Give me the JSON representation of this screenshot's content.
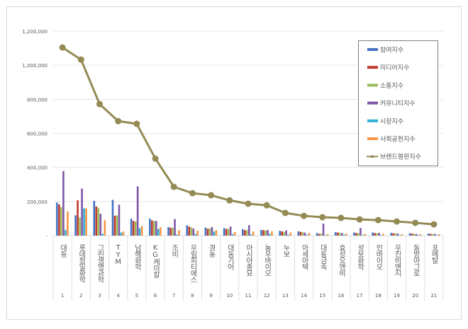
{
  "chart_data": {
    "type": "bar",
    "title": "",
    "xlabel": "",
    "ylabel": "",
    "ylim": [
      0,
      1200000
    ],
    "yticks": [
      "-",
      "200,000",
      "400,000",
      "600,000",
      "800,000",
      "1,000,000",
      "1,200,000"
    ],
    "grid": true,
    "legend_position": "right",
    "categories": [
      "대동",
      "롯데정밀화학",
      "그린생명과학",
      "TYM",
      "남해화학",
      "KG케미칼",
      "조비",
      "우림피티에스",
      "경농",
      "대동기어",
      "아시아종묘",
      "농우바이오",
      "누보",
      "아세아텍",
      "대동금속",
      "효성오앤비",
      "성보화학",
      "인바이오",
      "우진비앤지",
      "동방아그로",
      "포메탈"
    ],
    "ranks": [
      "1",
      "2",
      "3",
      "4",
      "5",
      "6",
      "7",
      "8",
      "9",
      "10",
      "11",
      "12",
      "13",
      "14",
      "15",
      "16",
      "17",
      "18",
      "19",
      "20",
      "21"
    ],
    "series": [
      {
        "name": "참여지수",
        "type": "bar",
        "color": "#4472c4",
        "values": [
          194000,
          119000,
          204000,
          210000,
          99000,
          100000,
          50000,
          60000,
          47000,
          44000,
          38000,
          33000,
          28000,
          25000,
          15000,
          20000,
          18000,
          18000,
          16000,
          14000,
          12000
        ]
      },
      {
        "name": "미디어지수",
        "type": "bar",
        "color": "#c0392b",
        "values": [
          183000,
          207000,
          171000,
          117000,
          86000,
          89000,
          46000,
          53000,
          40000,
          39000,
          32000,
          32000,
          25000,
          22000,
          10000,
          18000,
          15000,
          15000,
          14000,
          12000,
          10000
        ]
      },
      {
        "name": "소통지수",
        "type": "bar",
        "color": "#9bbb59",
        "values": [
          167000,
          106000,
          163000,
          118000,
          83000,
          86000,
          46000,
          49000,
          42000,
          40000,
          32000,
          30000,
          22000,
          20000,
          12000,
          16000,
          14000,
          14000,
          13000,
          11000,
          9000
        ]
      },
      {
        "name": "커뮤니티지수",
        "type": "bar",
        "color": "#7e57a8",
        "values": [
          379000,
          276000,
          128000,
          181000,
          289000,
          86000,
          97000,
          42000,
          50000,
          53000,
          61000,
          33000,
          30000,
          18000,
          70000,
          15000,
          45000,
          16000,
          12000,
          10000,
          10000
        ]
      },
      {
        "name": "시장지수",
        "type": "bar",
        "color": "#31b0d5",
        "values": [
          33000,
          160000,
          10000,
          18000,
          44000,
          40000,
          7000,
          10000,
          24000,
          8000,
          7000,
          10000,
          5000,
          5000,
          3000,
          5000,
          3000,
          3000,
          3000,
          3000,
          3000
        ]
      },
      {
        "name": "사회공헌지수",
        "type": "bar",
        "color": "#f79646",
        "values": [
          142000,
          160000,
          90000,
          24000,
          56000,
          49000,
          32000,
          29000,
          32000,
          21000,
          24000,
          25000,
          18000,
          15000,
          8000,
          12000,
          10000,
          10000,
          8000,
          8000,
          8000
        ]
      },
      {
        "name": "브랜드평판지수",
        "type": "line",
        "color": "#948a54",
        "values": [
          1104000,
          1033000,
          772000,
          672000,
          656000,
          452000,
          286000,
          249000,
          237000,
          207000,
          187000,
          178000,
          133000,
          116000,
          108000,
          104000,
          95000,
          91000,
          83000,
          75000,
          66000
        ]
      }
    ]
  }
}
